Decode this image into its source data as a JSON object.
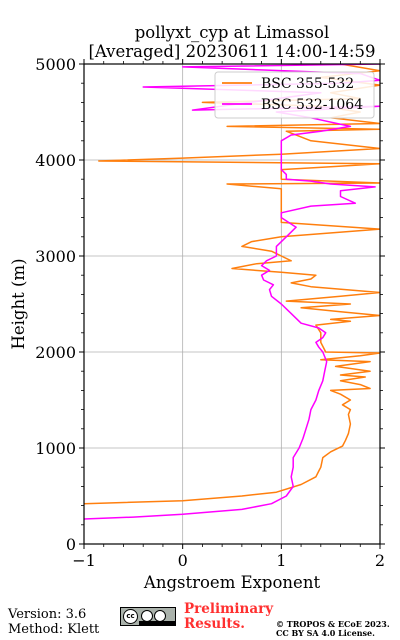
{
  "chart_data": {
    "type": "line",
    "title_line1": "pollyxt_cyp at Limassol",
    "title_line2": "[Averaged] 20230611 14:00-14:59",
    "xlabel": "Angstroem Exponent",
    "ylabel": "Height (m)",
    "xlim": [
      -1,
      2
    ],
    "ylim": [
      0,
      5000
    ],
    "xticks": [
      "−1",
      "0",
      "1",
      "2"
    ],
    "yticks": [
      "0",
      "1000",
      "2000",
      "3000",
      "4000",
      "5000"
    ],
    "xtick_values": [
      -1,
      0,
      1,
      2
    ],
    "ytick_values": [
      0,
      1000,
      2000,
      3000,
      4000,
      5000
    ],
    "grid": true,
    "legend_position": "top-right",
    "series": [
      {
        "name": "BSC 355-532",
        "color": "#ff7f0e",
        "points": [
          [
            -1.0,
            420
          ],
          [
            0.0,
            450
          ],
          [
            0.6,
            500
          ],
          [
            0.95,
            540
          ],
          [
            1.2,
            620
          ],
          [
            1.35,
            700
          ],
          [
            1.38,
            760
          ],
          [
            1.4,
            800
          ],
          [
            1.42,
            900
          ],
          [
            1.5,
            960
          ],
          [
            1.62,
            1020
          ],
          [
            1.65,
            1080
          ],
          [
            1.68,
            1150
          ],
          [
            1.7,
            1250
          ],
          [
            1.68,
            1350
          ],
          [
            1.7,
            1400
          ],
          [
            1.62,
            1450
          ],
          [
            1.7,
            1500
          ],
          [
            1.6,
            1560
          ],
          [
            1.5,
            1600
          ],
          [
            1.9,
            1620
          ],
          [
            1.8,
            1660
          ],
          [
            1.6,
            1700
          ],
          [
            1.85,
            1740
          ],
          [
            1.6,
            1760
          ],
          [
            1.9,
            1800
          ],
          [
            1.55,
            1850
          ],
          [
            1.9,
            1900
          ],
          [
            1.4,
            1920
          ],
          [
            1.8,
            1960
          ],
          [
            2.0,
            1990
          ],
          [
            1.45,
            2000
          ],
          [
            1.4,
            2100
          ],
          [
            1.4,
            2200
          ],
          [
            1.35,
            2280
          ],
          [
            1.7,
            2320
          ],
          [
            1.5,
            2340
          ],
          [
            2.0,
            2380
          ],
          [
            1.6,
            2420
          ],
          [
            1.2,
            2460
          ],
          [
            1.7,
            2500
          ],
          [
            1.05,
            2530
          ],
          [
            1.6,
            2580
          ],
          [
            2.0,
            2620
          ],
          [
            1.3,
            2680
          ],
          [
            1.1,
            2720
          ],
          [
            1.3,
            2760
          ],
          [
            1.35,
            2800
          ],
          [
            1.0,
            2830
          ],
          [
            0.5,
            2870
          ],
          [
            0.75,
            2920
          ],
          [
            1.1,
            2950
          ],
          [
            1.0,
            3000
          ],
          [
            0.9,
            3050
          ],
          [
            0.6,
            3100
          ],
          [
            0.7,
            3150
          ],
          [
            1.0,
            3200
          ],
          [
            2.0,
            3280
          ],
          [
            1.0,
            3350
          ],
          [
            1.0,
            3500
          ],
          [
            1.0,
            3700
          ],
          [
            0.45,
            3750
          ],
          [
            2.0,
            3760
          ],
          [
            1.0,
            3800
          ],
          [
            1.0,
            3900
          ],
          [
            1.5,
            3930
          ],
          [
            2.0,
            3960
          ],
          [
            -0.85,
            3990
          ],
          [
            0.0,
            4020
          ],
          [
            1.0,
            4060
          ],
          [
            2.0,
            4120
          ],
          [
            1.3,
            4200
          ],
          [
            1.05,
            4300
          ],
          [
            2.0,
            4320
          ],
          [
            0.45,
            4350
          ],
          [
            2.0,
            4380
          ],
          [
            1.5,
            4440
          ],
          [
            1.8,
            4500
          ],
          [
            1.4,
            4560
          ],
          [
            0.2,
            4600
          ],
          [
            1.8,
            4640
          ],
          [
            1.5,
            4700
          ],
          [
            2.0,
            4780
          ],
          [
            1.4,
            4860
          ],
          [
            2.0,
            4930
          ],
          [
            1.6,
            5000
          ]
        ]
      },
      {
        "name": "BSC 532-1064",
        "color": "#ff00ff",
        "points": [
          [
            -1.0,
            260
          ],
          [
            -0.5,
            280
          ],
          [
            0.0,
            310
          ],
          [
            0.6,
            360
          ],
          [
            0.9,
            420
          ],
          [
            1.05,
            500
          ],
          [
            1.12,
            600
          ],
          [
            1.1,
            700
          ],
          [
            1.12,
            800
          ],
          [
            1.12,
            900
          ],
          [
            1.18,
            1000
          ],
          [
            1.22,
            1100
          ],
          [
            1.25,
            1200
          ],
          [
            1.28,
            1300
          ],
          [
            1.3,
            1400
          ],
          [
            1.35,
            1500
          ],
          [
            1.38,
            1600
          ],
          [
            1.42,
            1700
          ],
          [
            1.44,
            1800
          ],
          [
            1.46,
            1900
          ],
          [
            1.42,
            2000
          ],
          [
            1.38,
            2050
          ],
          [
            1.35,
            2100
          ],
          [
            1.42,
            2150
          ],
          [
            1.45,
            2200
          ],
          [
            1.38,
            2250
          ],
          [
            1.2,
            2300
          ],
          [
            1.1,
            2400
          ],
          [
            1.0,
            2500
          ],
          [
            0.9,
            2580
          ],
          [
            0.88,
            2650
          ],
          [
            0.92,
            2700
          ],
          [
            0.82,
            2750
          ],
          [
            0.8,
            2800
          ],
          [
            0.88,
            2850
          ],
          [
            0.8,
            2900
          ],
          [
            0.85,
            2950
          ],
          [
            0.95,
            3000
          ],
          [
            0.95,
            3100
          ],
          [
            1.05,
            3200
          ],
          [
            1.15,
            3300
          ],
          [
            1.0,
            3400
          ],
          [
            1.0,
            3450
          ],
          [
            1.3,
            3520
          ],
          [
            1.75,
            3550
          ],
          [
            1.6,
            3620
          ],
          [
            1.6,
            3680
          ],
          [
            1.95,
            3720
          ],
          [
            1.5,
            3750
          ],
          [
            1.3,
            3780
          ],
          [
            1.05,
            3800
          ],
          [
            1.05,
            3850
          ],
          [
            1.0,
            3900
          ],
          [
            1.0,
            4000
          ],
          [
            1.0,
            4100
          ],
          [
            1.0,
            4200
          ],
          [
            1.1,
            4260
          ],
          [
            1.4,
            4300
          ],
          [
            1.7,
            4350
          ],
          [
            1.3,
            4440
          ],
          [
            0.95,
            4500
          ],
          [
            2.0,
            4560
          ],
          [
            0.1,
            4520
          ],
          [
            1.4,
            4700
          ],
          [
            -0.4,
            4760
          ],
          [
            1.6,
            4800
          ],
          [
            2.0,
            4830
          ],
          [
            1.8,
            4900
          ],
          [
            0.0,
            4970
          ],
          [
            2.0,
            5000
          ]
        ]
      }
    ]
  },
  "footer": {
    "version": "Version: 3.6",
    "method": "Method: Klett",
    "cc_badge_text": "cc",
    "preliminary_line1": "Preliminary",
    "preliminary_line2": "Results.",
    "copyright_line1": "© TROPOS & ECoE 2023.",
    "copyright_line2": "CC BY SA 4.0 License."
  }
}
